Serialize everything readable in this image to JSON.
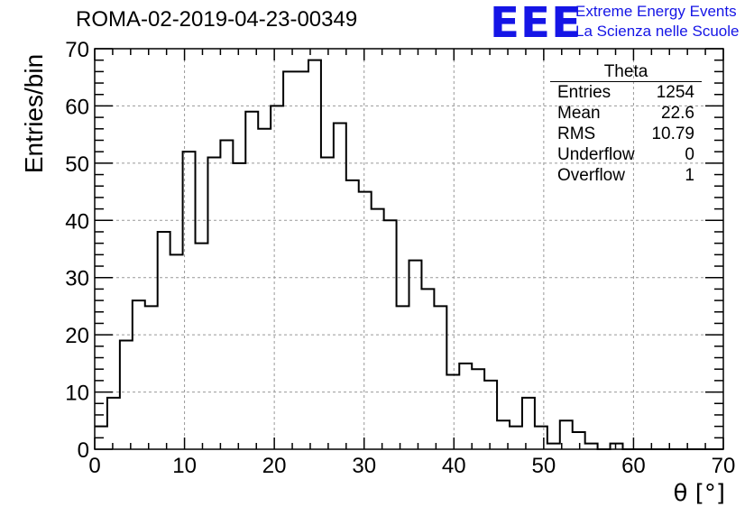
{
  "header": {
    "title": "ROMA-02-2019-04-23-00349",
    "logo_text": "EEE",
    "logo_line1": "Extreme Energy Events",
    "logo_line2": "La Scienza nelle Scuole"
  },
  "stats_box": {
    "title": "Theta",
    "rows": [
      {
        "label": "Entries",
        "value": "1254"
      },
      {
        "label": "Mean",
        "value": "22.6"
      },
      {
        "label": "RMS",
        "value": "10.79"
      },
      {
        "label": "Underflow",
        "value": "0"
      },
      {
        "label": "Overflow",
        "value": "1"
      }
    ]
  },
  "colors": {
    "histogram": "#000000",
    "grid": "#999999",
    "logo": "#1515e6"
  },
  "chart_data": {
    "type": "bar",
    "title": "ROMA-02-2019-04-23-00349",
    "xlabel": "θ [°]",
    "ylabel": "Entries/bin",
    "xlim": [
      0,
      70
    ],
    "ylim": [
      0,
      70
    ],
    "grid": true,
    "bin_width": 1.4,
    "x_ticks": [
      0,
      10,
      20,
      30,
      40,
      50,
      60,
      70
    ],
    "y_ticks": [
      0,
      10,
      20,
      30,
      40,
      50,
      60,
      70
    ],
    "bin_edges": [
      0,
      1.4,
      2.8,
      4.2,
      5.6,
      7.0,
      8.4,
      9.8,
      11.2,
      12.6,
      14.0,
      15.4,
      16.8,
      18.2,
      19.6,
      21.0,
      22.4,
      23.8,
      25.2,
      26.6,
      28.0,
      29.4,
      30.8,
      32.2,
      33.6,
      35.0,
      36.4,
      37.8,
      39.2,
      40.6,
      42.0,
      43.4,
      44.8,
      46.2,
      47.6,
      49.0,
      50.4,
      51.8,
      53.2,
      54.6,
      56.0,
      57.4,
      58.8,
      60.2,
      61.6,
      63.0,
      64.4,
      65.8,
      67.2,
      68.6,
      70.0
    ],
    "values": [
      4,
      9,
      19,
      26,
      25,
      38,
      34,
      52,
      36,
      51,
      54,
      50,
      59,
      56,
      60,
      66,
      66,
      68,
      51,
      57,
      47,
      45,
      42,
      40,
      25,
      33,
      28,
      25,
      13,
      15,
      14,
      12,
      5,
      4,
      9,
      4,
      1,
      5,
      3,
      1,
      0,
      1,
      0,
      0,
      0,
      0,
      0,
      0,
      0,
      0
    ]
  }
}
